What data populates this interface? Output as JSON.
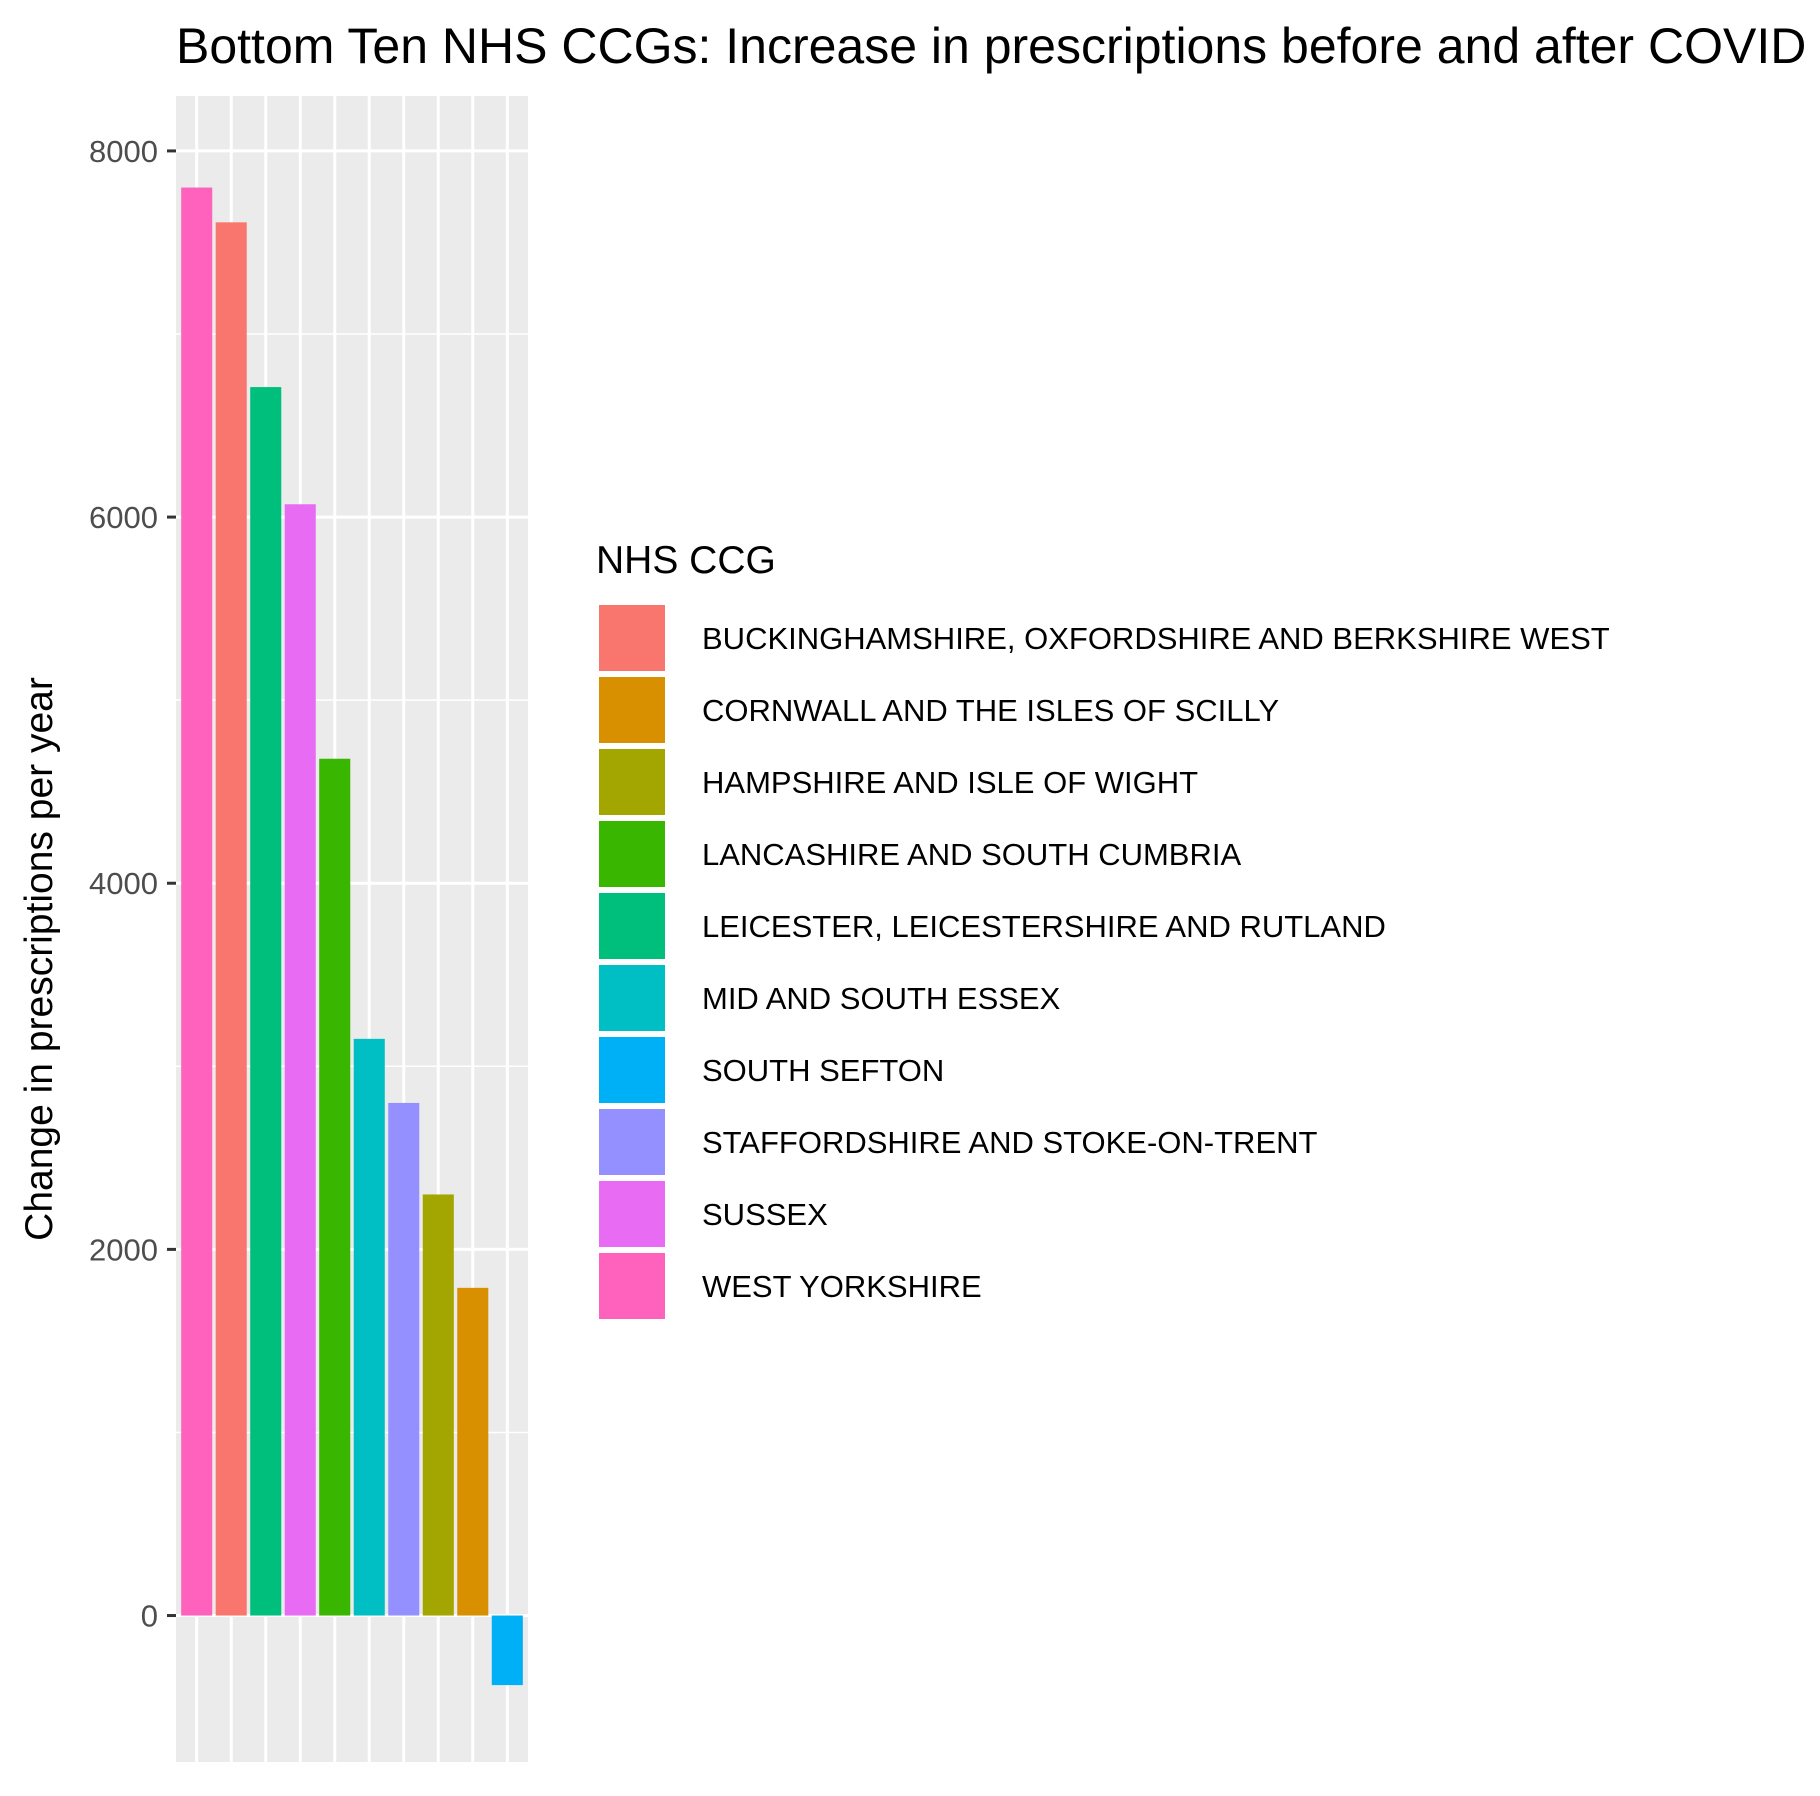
{
  "chart_data": {
    "type": "bar",
    "title": "Bottom Ten NHS CCGs: Increase in prescriptions before and after COVID",
    "xlabel": "",
    "ylabel": "Change in prescriptions per year",
    "ylim": [
      -800,
      8300
    ],
    "yticks": [
      0,
      2000,
      4000,
      6000,
      8000
    ],
    "grid": true,
    "legend": {
      "title": "NHS CCG",
      "position": "right",
      "entries": [
        {
          "label": "BUCKINGHAMSHIRE, OXFORDSHIRE AND BERKSHIRE WEST",
          "color": "#F8766D"
        },
        {
          "label": "CORNWALL AND THE ISLES OF SCILLY",
          "color": "#D89000"
        },
        {
          "label": "HAMPSHIRE AND ISLE OF WIGHT",
          "color": "#A3A500"
        },
        {
          "label": "LANCASHIRE AND SOUTH CUMBRIA",
          "color": "#39B600"
        },
        {
          "label": "LEICESTER, LEICESTERSHIRE AND RUTLAND",
          "color": "#00BF7D"
        },
        {
          "label": "MID AND SOUTH ESSEX",
          "color": "#00BFC4"
        },
        {
          "label": "SOUTH SEFTON",
          "color": "#00B0F6"
        },
        {
          "label": "STAFFORDSHIRE AND STOKE-ON-TRENT",
          "color": "#9590FF"
        },
        {
          "label": "SUSSEX",
          "color": "#E76BF3"
        },
        {
          "label": "WEST YORKSHIRE",
          "color": "#FF62BC"
        }
      ]
    },
    "bars": [
      {
        "category": "WEST YORKSHIRE",
        "value": 7800,
        "color": "#FF62BC"
      },
      {
        "category": "BUCKINGHAMSHIRE, OXFORDSHIRE AND BERKSHIRE WEST",
        "value": 7610,
        "color": "#F8766D"
      },
      {
        "category": "LEICESTER, LEICESTERSHIRE AND RUTLAND",
        "value": 6710,
        "color": "#00BF7D"
      },
      {
        "category": "SUSSEX",
        "value": 6070,
        "color": "#E76BF3"
      },
      {
        "category": "LANCASHIRE AND SOUTH CUMBRIA",
        "value": 4680,
        "color": "#39B600"
      },
      {
        "category": "MID AND SOUTH ESSEX",
        "value": 3150,
        "color": "#00BFC4"
      },
      {
        "category": "STAFFORDSHIRE AND STOKE-ON-TRENT",
        "value": 2800,
        "color": "#9590FF"
      },
      {
        "category": "HAMPSHIRE AND ISLE OF WIGHT",
        "value": 2300,
        "color": "#A3A500"
      },
      {
        "category": "CORNWALL AND THE ISLES OF SCILLY",
        "value": 1790,
        "color": "#D89000"
      },
      {
        "category": "SOUTH SEFTON",
        "value": -380,
        "color": "#00B0F6"
      }
    ],
    "panel_background": "#EBEBEB",
    "grid_color": "#FFFFFF"
  }
}
